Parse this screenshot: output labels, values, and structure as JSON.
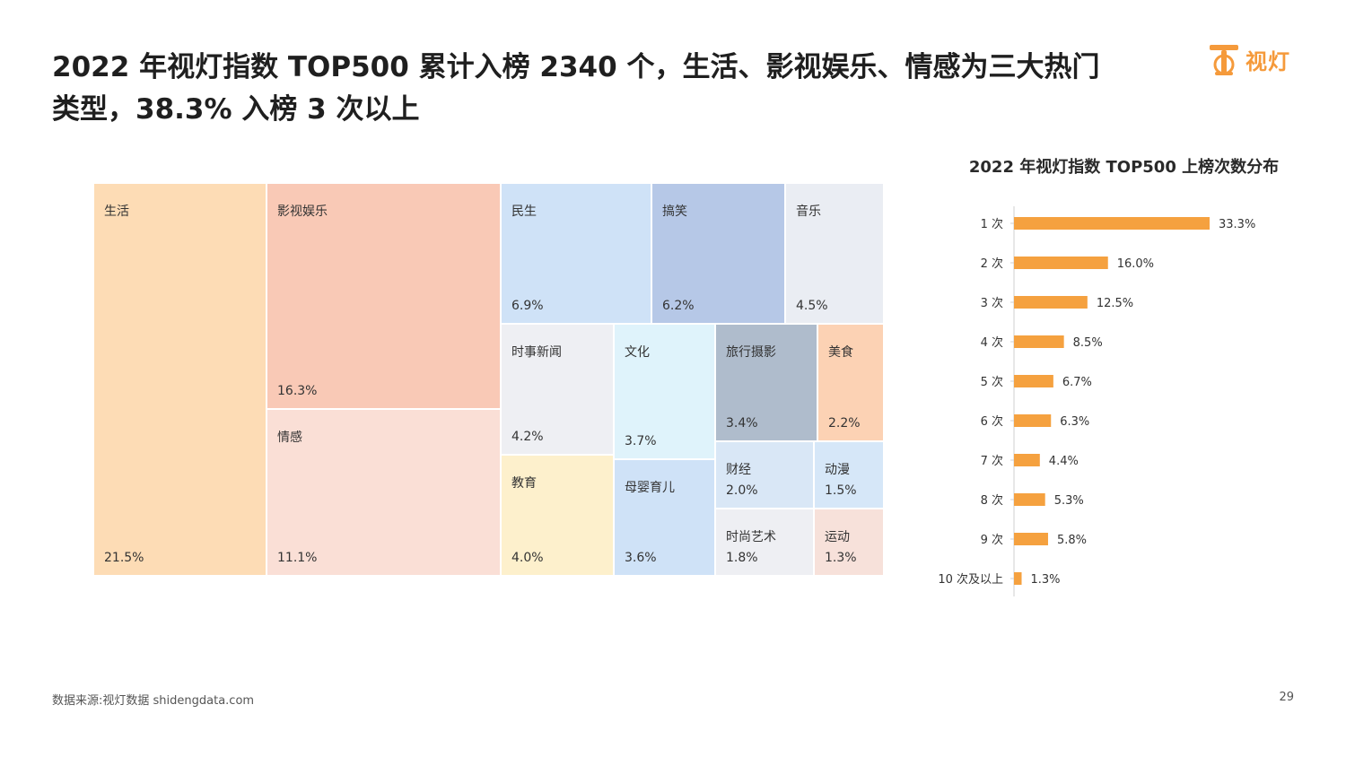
{
  "header": {
    "title_line1": "2022 年视灯指数 TOP500 累计入榜 2340 个，生活、影视娱乐、情感为三大热门",
    "title_line2": "类型，38.3% 入榜 3 次以上",
    "logo_text": "视灯",
    "logo_icon": "lamp-logo-icon"
  },
  "footer": {
    "source": "数据来源:视灯数据 shidengdata.com",
    "page_number": "29"
  },
  "colors": {
    "accent": "#f59a3b",
    "bar": "#f5a13f"
  },
  "chart_data": [
    {
      "type": "treemap",
      "title": "",
      "items": [
        {
          "name": "生活",
          "value": 21.5,
          "label": "21.5%",
          "color": "#fddcb5"
        },
        {
          "name": "影视娱乐",
          "value": 16.3,
          "label": "16.3%",
          "color": "#f9c9b6"
        },
        {
          "name": "情感",
          "value": 11.1,
          "label": "11.1%",
          "color": "#fadfd6"
        },
        {
          "name": "民生",
          "value": 6.9,
          "label": "6.9%",
          "color": "#cfe2f7"
        },
        {
          "name": "搞笑",
          "value": 6.2,
          "label": "6.2%",
          "color": "#b6c8e7"
        },
        {
          "name": "音乐",
          "value": 4.5,
          "label": "4.5%",
          "color": "#eaedf3"
        },
        {
          "name": "时事新闻",
          "value": 4.2,
          "label": "4.2%",
          "color": "#eeeff3"
        },
        {
          "name": "文化",
          "value": 3.7,
          "label": "3.7%",
          "color": "#dff3fb"
        },
        {
          "name": "旅行摄影",
          "value": 3.4,
          "label": "3.4%",
          "color": "#afbccc"
        },
        {
          "name": "美食",
          "value": 2.2,
          "label": "2.2%",
          "color": "#fcd2b4"
        },
        {
          "name": "教育",
          "value": 4.0,
          "label": "4.0%",
          "color": "#fdf0cc"
        },
        {
          "name": "母婴育儿",
          "value": 3.6,
          "label": "3.6%",
          "color": "#cfe2f7"
        },
        {
          "name": "财经",
          "value": 2.0,
          "label": "2.0%",
          "color": "#d9e7f6"
        },
        {
          "name": "动漫",
          "value": 1.5,
          "label": "1.5%",
          "color": "#d6e7f8"
        },
        {
          "name": "时尚艺术",
          "value": 1.8,
          "label": "1.8%",
          "color": "#eeeff3"
        },
        {
          "name": "运动",
          "value": 1.3,
          "label": "1.3%",
          "color": "#f7e1da"
        }
      ]
    },
    {
      "type": "bar",
      "orientation": "horizontal",
      "title": "2022 年视灯指数 TOP500 上榜次数分布",
      "categories": [
        "1 次",
        "2 次",
        "3 次",
        "4 次",
        "5 次",
        "6 次",
        "7 次",
        "8 次",
        "9 次",
        "10 次及以上"
      ],
      "values": [
        33.3,
        16.0,
        12.5,
        8.5,
        6.7,
        6.3,
        4.4,
        5.3,
        5.8,
        1.3
      ],
      "value_labels": [
        "33.3%",
        "16.0%",
        "12.5%",
        "8.5%",
        "6.7%",
        "6.3%",
        "4.4%",
        "5.3%",
        "5.8%",
        "1.3%"
      ],
      "xlim": [
        0,
        33.3
      ],
      "grid": false
    }
  ]
}
